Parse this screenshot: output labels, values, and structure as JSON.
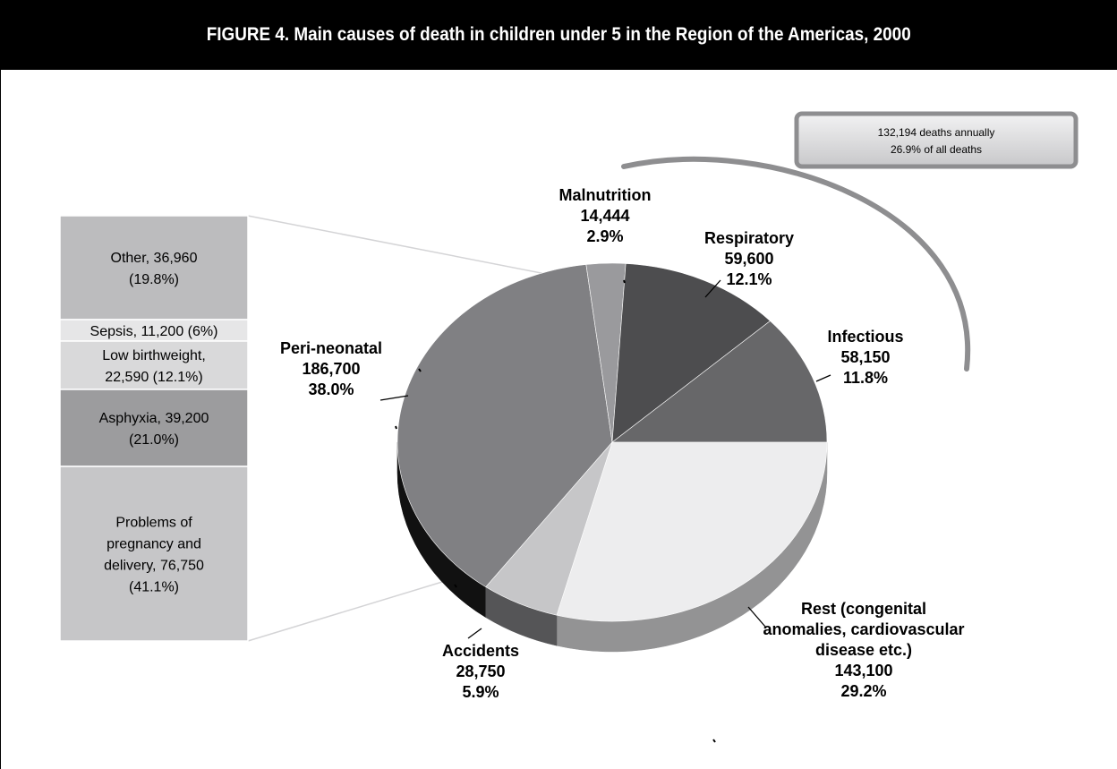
{
  "title": "FIGURE 4. Main causes of death in children under 5 in the Region of the Americas, 2000",
  "chart_data": [
    {
      "type": "pie",
      "slices": [
        {
          "label": "Peri-neonatal",
          "value": 186700,
          "value_label": "186,700",
          "percent_label": "38.0%",
          "color": "#808083"
        },
        {
          "label": "Malnutrition",
          "value": 14444,
          "value_label": "14,444",
          "percent_label": "2.9%",
          "color": "#9a9a9d"
        },
        {
          "label": "Respiratory",
          "value": 59600,
          "value_label": "59,600",
          "percent_label": "12.1%",
          "color": "#4d4d4f"
        },
        {
          "label": "Infectious",
          "value": 58150,
          "value_label": "58,150",
          "percent_label": "11.8%",
          "color": "#676769"
        },
        {
          "label": "Rest (congenital anomalies, cardiovascular disease etc.)",
          "label_lines": [
            "Rest (congenital",
            "anomalies, cardiovascular",
            "disease etc.)"
          ],
          "value": 143100,
          "value_label": "143,100",
          "percent_label": "29.2%",
          "color": "#ededee"
        },
        {
          "label": "Accidents",
          "value": 28750,
          "value_label": "28,750",
          "percent_label": "5.9%",
          "color": "#c6c6c8"
        }
      ]
    },
    {
      "type": "bar",
      "stacked": true,
      "parent": "Peri-neonatal",
      "segments": [
        {
          "label": "Other",
          "value": 36960,
          "percent": 19.8,
          "label_lines": [
            "Other, 36,960",
            "(19.8%)"
          ],
          "color": "#bcbcbe"
        },
        {
          "label": "Sepsis",
          "value": 11200,
          "percent": 6.0,
          "label_lines": [
            "Sepsis, 11,200 (6%)"
          ],
          "color": "#e6e6e7"
        },
        {
          "label": "Low birthweight",
          "value": 22590,
          "percent": 12.1,
          "label_lines": [
            "Low birthweight,",
            "22,590 (12.1%)"
          ],
          "color": "#d9d9da"
        },
        {
          "label": "Asphyxia",
          "value": 39200,
          "percent": 21.0,
          "label_lines": [
            "Asphyxia, 39,200",
            "(21.0%)"
          ],
          "color": "#9c9c9e"
        },
        {
          "label": "Problems of pregnancy and delivery",
          "value": 76750,
          "percent": 41.1,
          "label_lines": [
            "Problems of",
            "pregnancy and",
            "delivery, 76,750",
            "(41.1%)"
          ],
          "color": "#c6c6c8"
        }
      ]
    }
  ],
  "annotation": {
    "lines": [
      "132,194 deaths annually",
      "26.9% of all deaths"
    ]
  }
}
